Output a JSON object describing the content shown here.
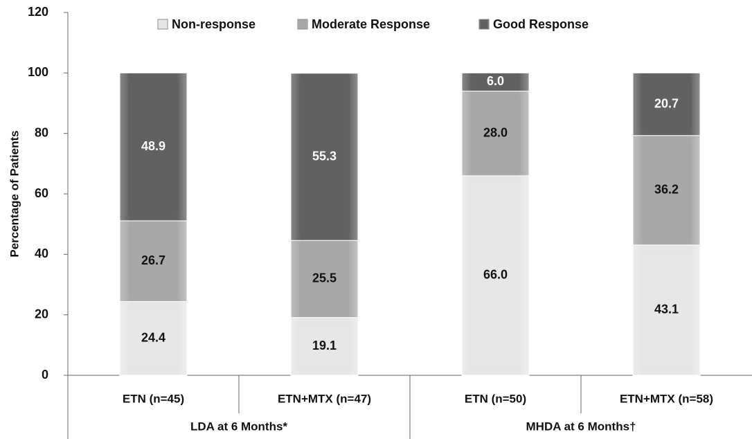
{
  "chart_data": {
    "type": "stacked_bar",
    "y_axis_label": "Percentage of Patients",
    "categories": [
      "ETN (n=45)",
      "ETN+MTX (n=47)",
      "ETN (n=50)",
      "ETN+MTX (n=58)"
    ],
    "groups": [
      "LDA at 6 Months*",
      "MHDA at 6 Months†"
    ],
    "series": [
      {
        "name": "Non-response",
        "color": "#e6e6e6",
        "label_color": "#111",
        "values": [
          24.4,
          19.1,
          66,
          43.1
        ],
        "value_labels": [
          "24.4",
          "19.1",
          "66.0",
          "43.1"
        ]
      },
      {
        "name": "Moderate Response",
        "color": "#a8a8a8",
        "label_color": "#111",
        "values": [
          26.7,
          25.5,
          28,
          36.2
        ],
        "value_labels": [
          "26.7",
          "25.5",
          "28.0",
          "36.2"
        ]
      },
      {
        "name": "Good Response",
        "color": "#616161",
        "label_color": "#fff",
        "values": [
          48.9,
          55.3,
          6,
          20.7
        ],
        "value_labels": [
          "48.9",
          "55.3",
          "6.0",
          "20.7"
        ]
      }
    ],
    "ylim": [
      0,
      120
    ],
    "yticks": [
      0,
      20,
      40,
      60,
      80,
      100,
      120
    ],
    "grid": false,
    "legend": "top"
  }
}
